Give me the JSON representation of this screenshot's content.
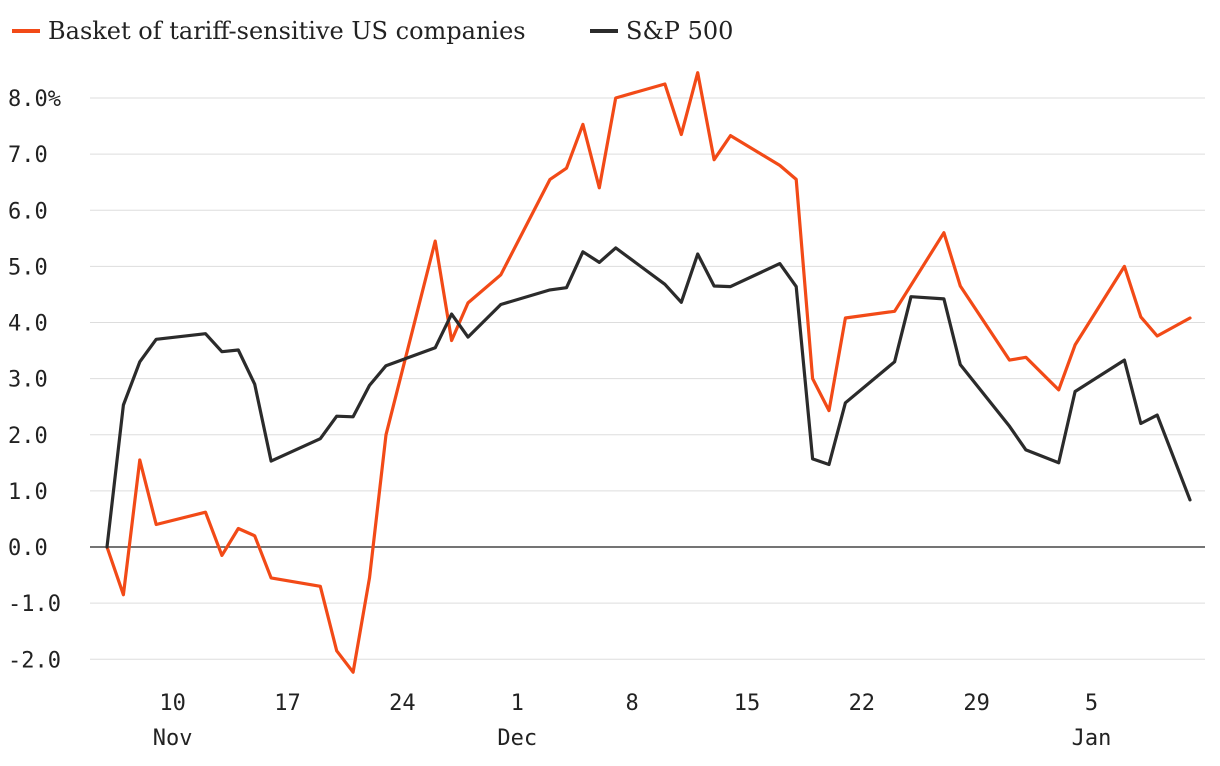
{
  "chart_data": {
    "type": "line",
    "title": "",
    "xlabel": "",
    "ylabel": "",
    "ylim": [
      -2.2,
      8.6
    ],
    "xlim": [
      -1,
      66
    ],
    "y_ticks": [
      -2.0,
      -1.0,
      0.0,
      1.0,
      2.0,
      3.0,
      4.0,
      5.0,
      6.0,
      7.0,
      8.0
    ],
    "y_tick_labels": [
      "-2.0",
      "-1.0",
      "0.0",
      "1.0",
      "2.0",
      "3.0",
      "4.0",
      "5.0",
      "6.0",
      "7.0",
      "8.0%"
    ],
    "x_ticks": [
      {
        "day": 4,
        "label": "10",
        "month": "Nov"
      },
      {
        "day": 11,
        "label": "17",
        "month": ""
      },
      {
        "day": 18,
        "label": "24",
        "month": ""
      },
      {
        "day": 25,
        "label": "1",
        "month": "Dec"
      },
      {
        "day": 32,
        "label": "8",
        "month": ""
      },
      {
        "day": 39,
        "label": "15",
        "month": ""
      },
      {
        "day": 46,
        "label": "22",
        "month": ""
      },
      {
        "day": 53,
        "label": "29",
        "month": ""
      },
      {
        "day": 60,
        "label": "5",
        "month": "Jan"
      }
    ],
    "legend_position": "top-left",
    "series": [
      {
        "name": "Basket of tariff-sensitive US companies",
        "color": "#f24a17",
        "points": [
          [
            0,
            0.0
          ],
          [
            1,
            -0.85
          ],
          [
            2,
            1.55
          ],
          [
            3,
            0.4
          ],
          [
            6,
            0.62
          ],
          [
            7,
            -0.15
          ],
          [
            8,
            0.33
          ],
          [
            9,
            0.2
          ],
          [
            10,
            -0.55
          ],
          [
            13,
            -0.7
          ],
          [
            14,
            -1.85
          ],
          [
            15,
            -2.23
          ],
          [
            16,
            -0.55
          ],
          [
            17,
            2.0
          ],
          [
            20,
            5.45
          ],
          [
            21,
            3.68
          ],
          [
            22,
            4.35
          ],
          [
            24,
            4.85
          ],
          [
            27,
            6.55
          ],
          [
            28,
            6.75
          ],
          [
            29,
            7.53
          ],
          [
            30,
            6.4
          ],
          [
            31,
            8.0
          ],
          [
            34,
            8.25
          ],
          [
            35,
            7.35
          ],
          [
            36,
            8.45
          ],
          [
            37,
            6.9
          ],
          [
            38,
            7.33
          ],
          [
            41,
            6.8
          ],
          [
            42,
            6.55
          ],
          [
            43,
            3.0
          ],
          [
            44,
            2.43
          ],
          [
            45,
            4.08
          ],
          [
            48,
            4.2
          ],
          [
            51,
            5.6
          ],
          [
            52,
            4.65
          ],
          [
            55,
            3.33
          ],
          [
            56,
            3.38
          ],
          [
            58,
            2.8
          ],
          [
            59,
            3.6
          ],
          [
            62,
            5.0
          ],
          [
            63,
            4.1
          ],
          [
            64,
            3.76
          ],
          [
            66,
            4.08
          ]
        ]
      },
      {
        "name": "S&P 500",
        "color": "#2b2b2b",
        "points": [
          [
            0,
            0.0
          ],
          [
            1,
            2.53
          ],
          [
            2,
            3.3
          ],
          [
            3,
            3.7
          ],
          [
            6,
            3.8
          ],
          [
            7,
            3.48
          ],
          [
            8,
            3.51
          ],
          [
            9,
            2.9
          ],
          [
            10,
            1.53
          ],
          [
            13,
            1.93
          ],
          [
            14,
            2.33
          ],
          [
            15,
            2.32
          ],
          [
            16,
            2.88
          ],
          [
            17,
            3.23
          ],
          [
            20,
            3.55
          ],
          [
            21,
            4.15
          ],
          [
            22,
            3.74
          ],
          [
            24,
            4.32
          ],
          [
            27,
            4.58
          ],
          [
            28,
            4.62
          ],
          [
            29,
            5.26
          ],
          [
            30,
            5.07
          ],
          [
            31,
            5.33
          ],
          [
            34,
            4.68
          ],
          [
            35,
            4.36
          ],
          [
            36,
            5.22
          ],
          [
            37,
            4.65
          ],
          [
            38,
            4.64
          ],
          [
            41,
            5.05
          ],
          [
            42,
            4.64
          ],
          [
            43,
            1.57
          ],
          [
            44,
            1.47
          ],
          [
            45,
            2.57
          ],
          [
            48,
            3.3
          ],
          [
            49,
            4.46
          ],
          [
            51,
            4.42
          ],
          [
            52,
            3.25
          ],
          [
            55,
            2.15
          ],
          [
            56,
            1.73
          ],
          [
            58,
            1.5
          ],
          [
            59,
            2.77
          ],
          [
            62,
            3.33
          ],
          [
            63,
            2.2
          ],
          [
            64,
            2.35
          ],
          [
            66,
            0.84
          ]
        ]
      }
    ]
  }
}
